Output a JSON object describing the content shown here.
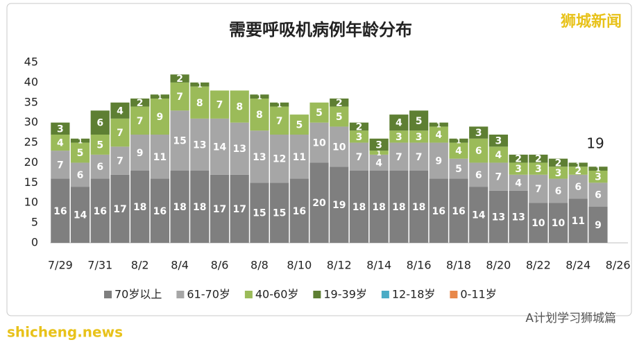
{
  "chart_data": {
    "type": "stacked-bar",
    "title": "需要呼吸机病例年龄分布",
    "watermark": "狮城新闻",
    "annotation": "19",
    "footer_left": "shicheng.news",
    "footer_right": "A计划学习狮城篇",
    "categories": [
      "7/29",
      null,
      "7/31",
      null,
      "8/2",
      null,
      "8/4",
      null,
      "8/6",
      null,
      "8/8",
      null,
      "8/10",
      null,
      "8/12",
      null,
      "8/14",
      null,
      "8/16",
      null,
      "8/18",
      null,
      "8/20",
      null,
      "8/22",
      null,
      "8/24",
      null,
      "8/26"
    ],
    "ylim": [
      0,
      45
    ],
    "yticks": [
      0,
      5,
      10,
      15,
      20,
      25,
      30,
      35,
      40,
      45
    ],
    "series": [
      {
        "name": "70岁以上",
        "color": "#7f7f7f",
        "values": [
          16,
          14,
          16,
          17,
          18,
          16,
          18,
          18,
          17,
          17,
          15,
          15,
          16,
          20,
          19,
          18,
          18,
          18,
          18,
          16,
          16,
          14,
          13,
          13,
          10,
          10,
          11,
          9,
          null
        ]
      },
      {
        "name": "61-70岁",
        "color": "#a6a6a6",
        "values": [
          7,
          6,
          6,
          7,
          9,
          11,
          15,
          13,
          14,
          13,
          13,
          12,
          11,
          10,
          10,
          7,
          4,
          7,
          7,
          9,
          5,
          6,
          7,
          4,
          7,
          6,
          6,
          6,
          null
        ]
      },
      {
        "name": "40-60岁",
        "color": "#9bbb59",
        "values": [
          4,
          5,
          5,
          7,
          7,
          9,
          7,
          8,
          7,
          8,
          8,
          7,
          5,
          5,
          5,
          3,
          1,
          3,
          3,
          4,
          4,
          6,
          4,
          3,
          3,
          3,
          2,
          3,
          null
        ]
      },
      {
        "name": "19-39岁",
        "color": "#5e7f33",
        "values": [
          3,
          1,
          6,
          4,
          2,
          1,
          2,
          1,
          0,
          0,
          1,
          1,
          0,
          0,
          2,
          2,
          3,
          4,
          5,
          1,
          1,
          3,
          3,
          2,
          2,
          2,
          1,
          1,
          null
        ]
      },
      {
        "name": "12-18岁",
        "color": "#4bacc6",
        "values": [
          0,
          0,
          0,
          0,
          0,
          0,
          0,
          0,
          0,
          0,
          0,
          0,
          0,
          0,
          0,
          0,
          0,
          0,
          0,
          0,
          0,
          0,
          0,
          0,
          0,
          0,
          0,
          0,
          null
        ]
      },
      {
        "name": "0-11岁",
        "color": "#e8884a",
        "values": [
          0,
          0,
          0,
          0,
          0,
          0,
          0,
          0,
          0,
          0,
          0,
          0,
          0,
          0,
          0,
          0,
          0,
          0,
          0,
          0,
          0,
          0,
          0,
          0,
          0,
          0,
          0,
          0,
          null
        ]
      }
    ]
  }
}
